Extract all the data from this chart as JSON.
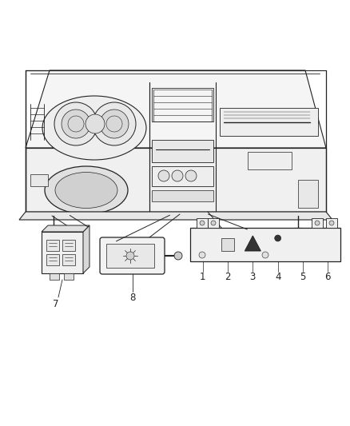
{
  "bg_color": "#ffffff",
  "lc": "#222222",
  "lw_main": 0.9,
  "lw_thin": 0.5,
  "lw_med": 0.7,
  "figsize": [
    4.38,
    5.33
  ],
  "dpi": 100,
  "numbers": [
    "1",
    "2",
    "3",
    "4",
    "5",
    "6",
    "7",
    "8"
  ],
  "num_fontsize": 8.5
}
